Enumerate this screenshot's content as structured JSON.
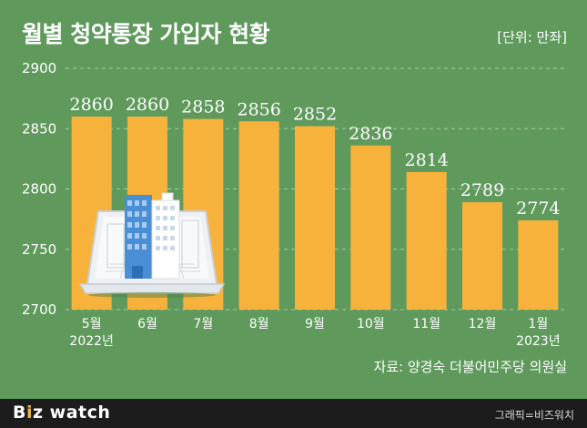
{
  "title": "월별 청약통장 가입자 현황",
  "unit_note": "[단위: 만좌]",
  "source": "자료: 양경숙 더불어민주당 의원실",
  "footer": {
    "logo_b": "B",
    "logo_i": "i",
    "logo_z": "z",
    "logo_rest": " watch",
    "credit": "그래픽=비즈워치"
  },
  "colors": {
    "background": "#5f9a5c",
    "bar": "#f7b23b",
    "footer": "#1c1c1c"
  },
  "chart_data": {
    "type": "bar",
    "categories": [
      "5월\n2022년",
      "6월",
      "7월",
      "8월",
      "9월",
      "10월",
      "11월",
      "12월",
      "1월\n2023년"
    ],
    "values": [
      2860,
      2860,
      2858,
      2856,
      2852,
      2836,
      2814,
      2789,
      2774
    ],
    "ylim": [
      2700,
      2900
    ],
    "yticks": [
      2700,
      2750,
      2800,
      2850,
      2900
    ],
    "grid": true,
    "data_labels": true,
    "illustration": "building-laptop-icon"
  }
}
